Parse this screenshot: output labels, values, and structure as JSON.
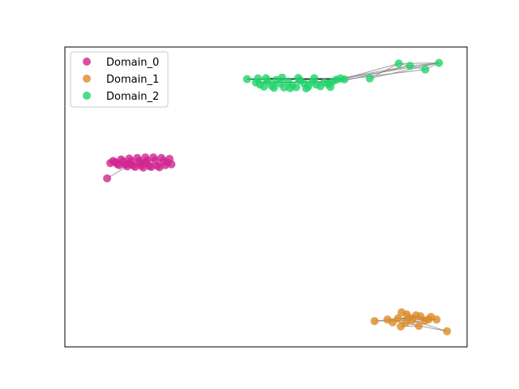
{
  "chart_data": {
    "type": "scatter",
    "title": "",
    "xlabel": "",
    "ylabel": "",
    "axis_ticks": false,
    "grid": false,
    "legend": {
      "placement": "top-left"
    },
    "xlim": [
      0,
      100
    ],
    "ylim": [
      0,
      100
    ],
    "series": [
      {
        "name": "Domain_0",
        "color": "#d02690",
        "points": [
          [
            10.5,
            56.2
          ],
          [
            11.3,
            61.3
          ],
          [
            13.0,
            61.0
          ],
          [
            15.0,
            60.8
          ],
          [
            17.0,
            60.5
          ],
          [
            19.0,
            60.4
          ],
          [
            21.0,
            60.3
          ],
          [
            23.0,
            60.4
          ],
          [
            25.0,
            60.6
          ],
          [
            26.5,
            60.9
          ],
          [
            12.0,
            62.0
          ],
          [
            14.0,
            62.5
          ],
          [
            16.0,
            62.8
          ],
          [
            18.0,
            63.0
          ],
          [
            20.0,
            63.2
          ],
          [
            22.0,
            63.2
          ],
          [
            24.0,
            63.0
          ],
          [
            26.0,
            62.7
          ],
          [
            12.5,
            61.6
          ],
          [
            14.5,
            61.8
          ],
          [
            16.5,
            61.9
          ],
          [
            18.5,
            62.0
          ],
          [
            20.5,
            62.1
          ],
          [
            22.5,
            62.2
          ],
          [
            24.5,
            62.0
          ],
          [
            15.5,
            60.2
          ],
          [
            17.5,
            60.0
          ],
          [
            19.5,
            59.8
          ],
          [
            21.5,
            60.0
          ],
          [
            23.5,
            59.9
          ],
          [
            13.5,
            60.6
          ],
          [
            25.5,
            61.5
          ],
          [
            18.8,
            61.2
          ],
          [
            20.2,
            61.4
          ],
          [
            16.2,
            61.0
          ]
        ]
      },
      {
        "name": "Domain_1",
        "color": "#dd8b26",
        "points": [
          [
            77.0,
            8.6
          ],
          [
            80.2,
            9.1
          ],
          [
            82.8,
            9.5
          ],
          [
            83.7,
            11.5
          ],
          [
            84.7,
            8.0
          ],
          [
            85.5,
            9.7
          ],
          [
            86.4,
            8.9
          ],
          [
            87.3,
            10.5
          ],
          [
            88.4,
            10.2
          ],
          [
            89.5,
            8.7
          ],
          [
            90.4,
            9.1
          ],
          [
            92.4,
            9.1
          ],
          [
            95.0,
            5.2
          ],
          [
            83.5,
            6.8
          ],
          [
            88.0,
            7.0
          ],
          [
            85.0,
            10.8
          ],
          [
            81.5,
            8.2
          ],
          [
            91.0,
            10.0
          ]
        ]
      },
      {
        "name": "Domain_2",
        "color": "#1ed469",
        "points": [
          [
            45.3,
            89.3
          ],
          [
            47.5,
            88.2
          ],
          [
            48.5,
            87.5
          ],
          [
            49.5,
            86.8
          ],
          [
            50.5,
            88.6
          ],
          [
            51.5,
            87.0
          ],
          [
            52.5,
            89.0
          ],
          [
            53.5,
            87.8
          ],
          [
            54.5,
            86.5
          ],
          [
            55.5,
            88.5
          ],
          [
            56.5,
            87.2
          ],
          [
            57.5,
            86.6
          ],
          [
            58.5,
            88.8
          ],
          [
            59.5,
            87.9
          ],
          [
            60.5,
            86.8
          ],
          [
            61.5,
            88.4
          ],
          [
            62.5,
            87.5
          ],
          [
            63.5,
            86.9
          ],
          [
            64.5,
            88.2
          ],
          [
            65.5,
            87.6
          ],
          [
            66.5,
            88.4
          ],
          [
            67.5,
            89.1
          ],
          [
            68.5,
            89.5
          ],
          [
            69.5,
            89.2
          ],
          [
            50.0,
            89.6
          ],
          [
            54.0,
            89.8
          ],
          [
            58.0,
            89.7
          ],
          [
            62.0,
            89.6
          ],
          [
            66.0,
            86.7
          ],
          [
            56.0,
            86.3
          ],
          [
            52.0,
            86.4
          ],
          [
            60.0,
            86.2
          ],
          [
            48.0,
            89.5
          ],
          [
            75.8,
            89.5
          ],
          [
            83.0,
            94.5
          ],
          [
            85.8,
            93.7
          ],
          [
            89.6,
            92.5
          ],
          [
            93.0,
            94.7
          ]
        ]
      }
    ],
    "edges": [
      {
        "color": "#808080",
        "from": [
          10.5,
          56.2
        ],
        "to": [
          15.5,
          60.2
        ]
      },
      {
        "color": "#000000",
        "from": [
          45.3,
          89.3
        ],
        "to": [
          69.5,
          89.2
        ]
      },
      {
        "color": "#000000",
        "from": [
          47.5,
          88.2
        ],
        "to": [
          66.5,
          88.4
        ]
      },
      {
        "color": "#000000",
        "from": [
          50.0,
          89.6
        ],
        "to": [
          67.5,
          89.1
        ]
      },
      {
        "color": "#000000",
        "from": [
          45.3,
          89.3
        ],
        "to": [
          68.5,
          89.5
        ]
      },
      {
        "color": "#808080",
        "from": [
          66.5,
          88.4
        ],
        "to": [
          83.0,
          94.5
        ]
      },
      {
        "color": "#808080",
        "from": [
          68.5,
          89.5
        ],
        "to": [
          85.8,
          93.7
        ]
      },
      {
        "color": "#808080",
        "from": [
          67.5,
          89.1
        ],
        "to": [
          93.0,
          94.7
        ]
      },
      {
        "color": "#808080",
        "from": [
          69.5,
          89.2
        ],
        "to": [
          89.6,
          92.5
        ]
      },
      {
        "color": "#808080",
        "from": [
          75.8,
          89.5
        ],
        "to": [
          83.0,
          94.5
        ]
      },
      {
        "color": "#808080",
        "from": [
          75.8,
          89.5
        ],
        "to": [
          93.0,
          94.7
        ]
      },
      {
        "color": "#808080",
        "from": [
          83.0,
          94.5
        ],
        "to": [
          93.0,
          94.7
        ]
      },
      {
        "color": "#808080",
        "from": [
          83.0,
          94.5
        ],
        "to": [
          89.6,
          92.5
        ]
      },
      {
        "color": "#808080",
        "from": [
          85.8,
          93.7
        ],
        "to": [
          93.0,
          94.7
        ]
      },
      {
        "color": "#808080",
        "from": [
          89.6,
          92.5
        ],
        "to": [
          93.0,
          94.7
        ]
      },
      {
        "color": "#808080",
        "from": [
          65.5,
          87.6
        ],
        "to": [
          85.8,
          93.7
        ]
      },
      {
        "color": "#808080",
        "from": [
          77.0,
          8.6
        ],
        "to": [
          92.4,
          9.1
        ]
      },
      {
        "color": "#808080",
        "from": [
          77.0,
          8.6
        ],
        "to": [
          88.4,
          10.2
        ]
      },
      {
        "color": "#808080",
        "from": [
          80.2,
          9.1
        ],
        "to": [
          95.0,
          5.2
        ]
      },
      {
        "color": "#808080",
        "from": [
          82.8,
          9.5
        ],
        "to": [
          92.4,
          9.1
        ]
      },
      {
        "color": "#808080",
        "from": [
          83.7,
          11.5
        ],
        "to": [
          90.4,
          9.1
        ]
      },
      {
        "color": "#808080",
        "from": [
          84.7,
          8.0
        ],
        "to": [
          92.4,
          9.1
        ]
      },
      {
        "color": "#808080",
        "from": [
          86.4,
          8.9
        ],
        "to": [
          95.0,
          5.2
        ]
      },
      {
        "color": "#808080",
        "from": [
          87.3,
          10.5
        ],
        "to": [
          89.5,
          8.7
        ]
      },
      {
        "color": "#808080",
        "from": [
          83.5,
          6.8
        ],
        "to": [
          88.0,
          7.0
        ]
      },
      {
        "color": "#808080",
        "from": [
          80.2,
          9.1
        ],
        "to": [
          88.4,
          10.2
        ]
      },
      {
        "color": "#808080",
        "from": [
          85.5,
          9.7
        ],
        "to": [
          91.0,
          10.0
        ]
      },
      {
        "color": "#808080",
        "from": [
          81.5,
          8.2
        ],
        "to": [
          87.3,
          10.5
        ]
      }
    ]
  }
}
